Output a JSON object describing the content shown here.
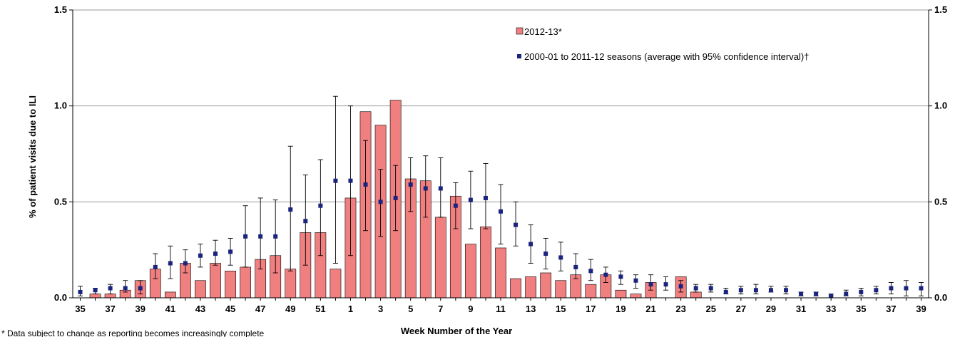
{
  "chart_data": {
    "type": "bar",
    "title": "",
    "xlabel": "Week Number of the Year",
    "ylabel": "% of patient visits due to ILI",
    "ylim": [
      0,
      1.5
    ],
    "yticks": [
      "0.0",
      "0.5",
      "1.0",
      "1.5"
    ],
    "grid": true,
    "legend_position": "top-right",
    "footnote": "* Data subject to change as reporting becomes increasingly complete",
    "categories": [
      "35",
      "36",
      "37",
      "38",
      "39",
      "40",
      "41",
      "42",
      "43",
      "44",
      "45",
      "46",
      "47",
      "48",
      "49",
      "50",
      "51",
      "52",
      "1",
      "2",
      "3",
      "4",
      "5",
      "6",
      "7",
      "8",
      "9",
      "10",
      "11",
      "12",
      "13",
      "14",
      "15",
      "16",
      "17",
      "18",
      "19",
      "20",
      "21",
      "22",
      "23",
      "24",
      "25",
      "26",
      "27",
      "28",
      "29",
      "30",
      "31",
      "32",
      "33",
      "34",
      "35",
      "36",
      "37",
      "38",
      "39"
    ],
    "x_tick_labels": [
      "35",
      "",
      "37",
      "",
      "39",
      "",
      "41",
      "",
      "43",
      "",
      "45",
      "",
      "47",
      "",
      "49",
      "",
      "51",
      "",
      "1",
      "",
      "3",
      "",
      "5",
      "",
      "7",
      "",
      "9",
      "",
      "11",
      "",
      "13",
      "",
      "15",
      "",
      "17",
      "",
      "19",
      "",
      "21",
      "",
      "23",
      "",
      "25",
      "",
      "27",
      "",
      "29",
      "",
      "31",
      "",
      "33",
      "",
      "35",
      "",
      "37",
      "",
      "39"
    ],
    "series": [
      {
        "name": "2012-13*",
        "kind": "bar",
        "color": "#F08080",
        "values": [
          null,
          0.02,
          0.02,
          0.04,
          0.09,
          0.15,
          0.03,
          0.18,
          0.09,
          0.18,
          0.14,
          0.16,
          0.2,
          0.22,
          0.15,
          0.34,
          0.34,
          0.15,
          0.52,
          0.97,
          0.9,
          1.03,
          0.62,
          0.61,
          0.42,
          0.53,
          0.28,
          0.37,
          0.26,
          0.1,
          0.11,
          0.13,
          0.09,
          0.12,
          0.07,
          0.12,
          0.04,
          0.02,
          0.08,
          null,
          0.11,
          0.03,
          null,
          null,
          null,
          null,
          null,
          null,
          null,
          null,
          null,
          null,
          null,
          null,
          null,
          null,
          null
        ]
      },
      {
        "name": "2000-01 to 2011-12 seasons (average with 95% confidence interval)†",
        "kind": "point_errorbar",
        "color": "#1A237E",
        "values": [
          0.03,
          0.04,
          0.05,
          0.05,
          0.05,
          0.16,
          0.18,
          0.18,
          0.22,
          0.23,
          0.24,
          0.32,
          0.32,
          0.32,
          0.46,
          0.4,
          0.48,
          0.61,
          0.61,
          0.59,
          0.5,
          0.52,
          0.59,
          0.57,
          0.57,
          0.48,
          0.51,
          0.52,
          0.45,
          0.38,
          0.28,
          0.23,
          0.21,
          0.16,
          0.14,
          0.12,
          0.11,
          0.09,
          0.07,
          0.07,
          0.06,
          0.05,
          0.05,
          0.03,
          0.04,
          0.04,
          0.04,
          0.04,
          0.02,
          0.02,
          0.01,
          0.02,
          0.03,
          0.04,
          0.05,
          0.05,
          0.05
        ],
        "ci_low": [
          0.01,
          0.02,
          0.02,
          0.03,
          0.02,
          0.1,
          0.1,
          0.13,
          0.16,
          0.17,
          0.17,
          0.16,
          0.15,
          0.13,
          0.14,
          0.17,
          0.22,
          0.18,
          0.22,
          0.35,
          0.32,
          0.35,
          0.45,
          0.42,
          0.42,
          0.36,
          0.36,
          0.36,
          0.28,
          0.27,
          0.18,
          0.15,
          0.14,
          0.1,
          0.09,
          0.08,
          0.07,
          0.05,
          0.04,
          0.04,
          0.03,
          0.03,
          0.03,
          0.02,
          0.02,
          0.02,
          0.03,
          0.02,
          0.01,
          0.01,
          0.01,
          0.01,
          0.01,
          0.02,
          0.02,
          0.01,
          0.01
        ],
        "ci_high": [
          0.06,
          0.05,
          0.07,
          0.09,
          0.09,
          0.23,
          0.27,
          0.25,
          0.28,
          0.3,
          0.31,
          0.48,
          0.52,
          0.51,
          0.79,
          0.64,
          0.72,
          1.05,
          1.0,
          0.82,
          0.67,
          0.69,
          0.73,
          0.74,
          0.73,
          0.6,
          0.66,
          0.7,
          0.59,
          0.5,
          0.38,
          0.31,
          0.29,
          0.23,
          0.2,
          0.16,
          0.14,
          0.12,
          0.12,
          0.11,
          0.09,
          0.07,
          0.07,
          0.05,
          0.06,
          0.07,
          0.06,
          0.06,
          0.03,
          0.03,
          0.02,
          0.04,
          0.05,
          0.06,
          0.08,
          0.09,
          0.08
        ]
      }
    ]
  }
}
